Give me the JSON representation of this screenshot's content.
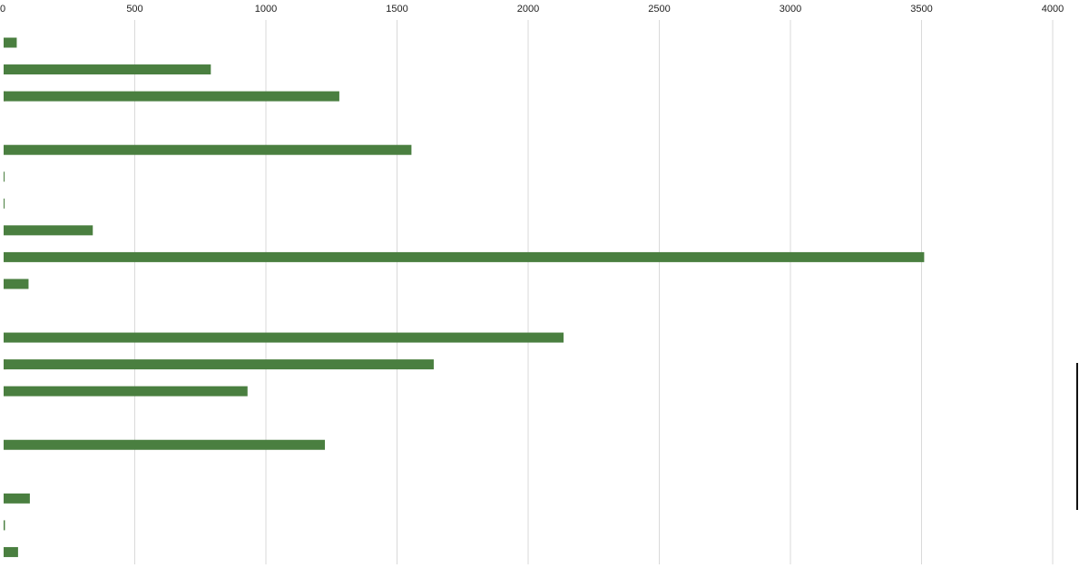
{
  "chart_data": {
    "type": "bar",
    "orientation": "horizontal",
    "title": "",
    "xlabel": "",
    "ylabel": "",
    "xlim": [
      0,
      4000
    ],
    "x_ticks": [
      0,
      500,
      1000,
      1500,
      2000,
      2500,
      3000,
      3500,
      4000
    ],
    "x_tick_labels": [
      "0",
      "500",
      "1000",
      "1500",
      "2000",
      "2500",
      "3000",
      "3500",
      "4000"
    ],
    "grid": true,
    "legend": "none",
    "series": [
      {
        "color": "#4a7f40",
        "values": [
          50,
          790,
          1280,
          0,
          1555,
          3,
          3,
          340,
          3510,
          95,
          0,
          2135,
          1640,
          930,
          0,
          1225,
          0,
          100,
          5,
          55
        ]
      },
      {
        "color": "#c0504d",
        "values": [
          0,
          0,
          6,
          0,
          0,
          0,
          0,
          0,
          0,
          0,
          0,
          0,
          10,
          0,
          0,
          0,
          0,
          0,
          0,
          0
        ]
      }
    ]
  }
}
